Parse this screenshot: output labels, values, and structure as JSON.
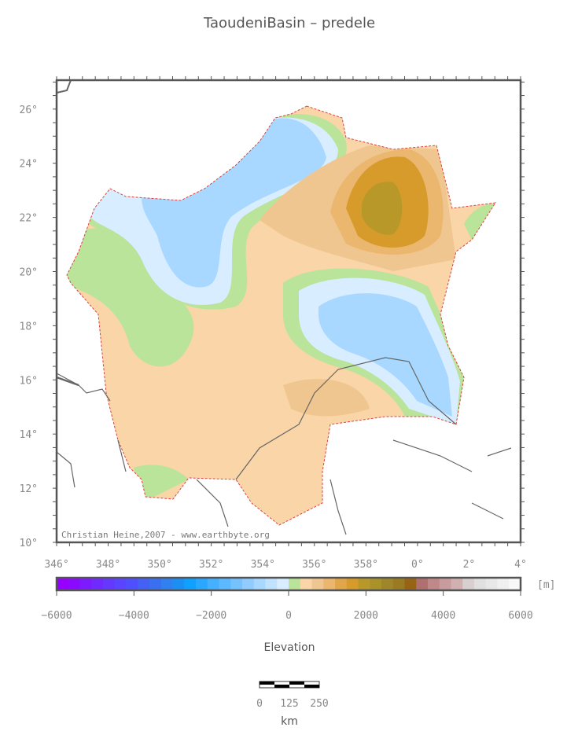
{
  "title": "TaoudeniBasin – predele",
  "credit": "Christian Heine,2007 - www.earthbyte.org",
  "lat_labels": [
    "10°",
    "12°",
    "14°",
    "16°",
    "18°",
    "20°",
    "22°",
    "24°",
    "26°"
  ],
  "lon_labels": [
    "346°",
    "348°",
    "350°",
    "352°",
    "354°",
    "356°",
    "358°",
    "0°",
    "2°",
    "4°"
  ],
  "colorbar": {
    "unit": "[m]",
    "label": "Elevation",
    "ticks": [
      "−6000",
      "−4000",
      "−2000",
      "0",
      "2000",
      "4000",
      "6000"
    ],
    "colors": [
      "#9600ff",
      "#8a0aff",
      "#7d1aff",
      "#702aff",
      "#6438ff",
      "#5a44ff",
      "#4e50ff",
      "#4460f5",
      "#3a6ff0",
      "#3080f0",
      "#1c8ff5",
      "#10a0ff",
      "#2aa8ff",
      "#44b0ff",
      "#5cb8ff",
      "#76c2ff",
      "#90ccff",
      "#a8d8ff",
      "#c0e2ff",
      "#d8edff",
      "#b9e49a",
      "#f9d5a7",
      "#f0c690",
      "#ebb66e",
      "#e2a64a",
      "#d69b2a",
      "#b9982a",
      "#aa922a",
      "#a0862a",
      "#9a7a22",
      "#966414",
      "#b07070",
      "#c08888",
      "#c89c9c",
      "#d0b0b0",
      "#d8d0d0",
      "#e0e0e0",
      "#e8e8e8",
      "#f0f0f0",
      "#f8f8f8"
    ]
  },
  "scale_bar": {
    "labels": [
      "0",
      "125",
      "250"
    ],
    "unit": "km"
  }
}
